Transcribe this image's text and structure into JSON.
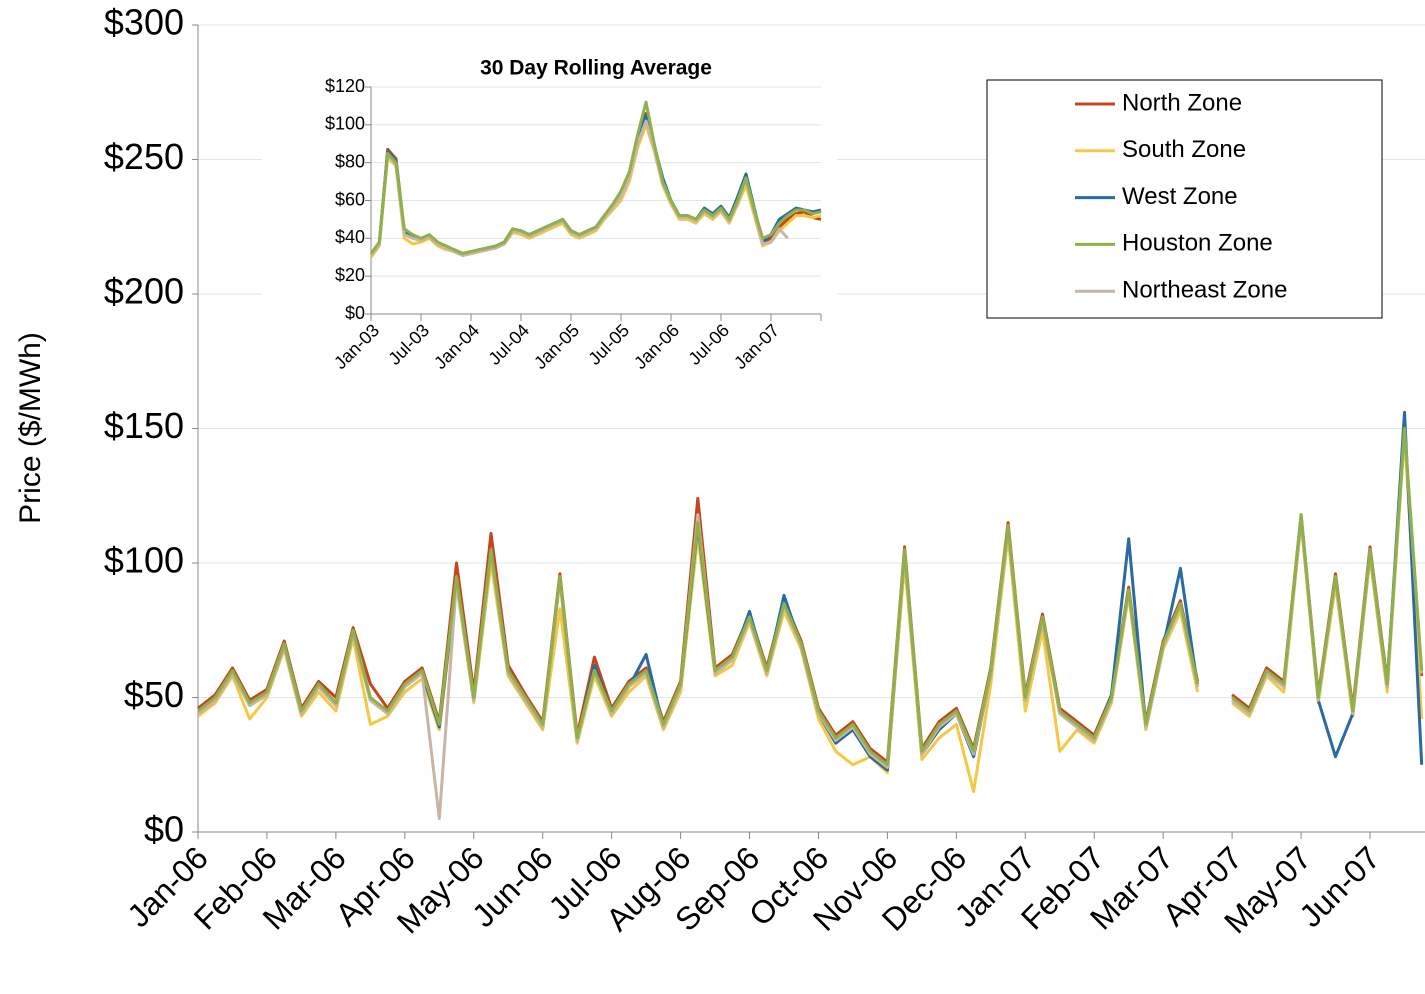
{
  "chart_data": [
    {
      "type": "line",
      "y_label": "Price ($/MWh)",
      "categories": [
        "Jan-06",
        null,
        null,
        null,
        "Feb-06",
        null,
        null,
        null,
        "Mar-06",
        null,
        null,
        null,
        "Apr-06",
        null,
        null,
        null,
        "May-06",
        null,
        null,
        null,
        "Jun-06",
        null,
        null,
        null,
        "Jul-06",
        null,
        null,
        null,
        "Aug-06",
        null,
        null,
        null,
        "Sep-06",
        null,
        null,
        null,
        "Oct-06",
        null,
        null,
        null,
        "Nov-06",
        null,
        null,
        null,
        "Dec-06",
        null,
        null,
        null,
        "Jan-07",
        null,
        null,
        null,
        "Feb-07",
        null,
        null,
        null,
        "Mar-07",
        null,
        null,
        null,
        "Apr-07",
        null,
        null,
        null,
        "May-07",
        null,
        null,
        null,
        "Jun-07",
        null,
        null,
        null
      ],
      "ylim": [
        0,
        300
      ],
      "yticks": [
        {
          "value": 0,
          "label": "$0"
        },
        {
          "value": 50,
          "label": "$50"
        },
        {
          "value": 100,
          "label": "$100"
        },
        {
          "value": 150,
          "label": "$150"
        },
        {
          "value": 200,
          "label": "$200"
        },
        {
          "value": 250,
          "label": "$250"
        },
        {
          "value": 300,
          "label": "$300"
        }
      ],
      "grid": true,
      "legend": "upper right",
      "series": [
        {
          "name": "North Zone",
          "color": "#c4461c",
          "values": [
            46,
            51,
            61,
            49,
            53,
            71,
            46,
            56,
            50,
            76,
            55,
            46,
            56,
            61,
            41,
            100,
            52,
            111,
            62,
            51,
            41,
            96,
            36,
            65,
            46,
            56,
            61,
            41,
            56,
            124,
            61,
            66,
            81,
            61,
            86,
            71,
            46,
            36,
            41,
            31,
            26,
            106,
            31,
            41,
            46,
            31,
            61,
            115,
            51,
            81,
            46,
            41,
            36,
            51,
            91,
            41,
            71,
            86,
            56,
            null,
            51,
            46,
            61,
            56,
            118,
            51,
            96,
            46,
            106,
            56,
            148,
            58
          ]
        },
        {
          "name": "South Zone",
          "color": "#f6c743",
          "values": [
            43,
            48,
            58,
            42,
            50,
            68,
            43,
            52,
            45,
            72,
            40,
            43,
            52,
            57,
            38,
            92,
            48,
            100,
            58,
            48,
            38,
            83,
            33,
            58,
            43,
            52,
            58,
            38,
            52,
            110,
            58,
            62,
            78,
            58,
            82,
            68,
            42,
            30,
            25,
            28,
            22,
            100,
            27,
            35,
            40,
            15,
            55,
            110,
            45,
            75,
            30,
            38,
            33,
            48,
            88,
            38,
            68,
            82,
            52,
            null,
            48,
            43,
            58,
            52,
            115,
            48,
            92,
            43,
            102,
            52,
            148,
            42
          ]
        },
        {
          "name": "West Zone",
          "color": "#2a6aa2",
          "values": [
            44,
            49,
            59,
            47,
            51,
            69,
            44,
            54,
            47,
            74,
            49,
            44,
            54,
            59,
            39,
            94,
            49,
            104,
            59,
            49,
            39,
            94,
            34,
            62,
            44,
            54,
            66,
            39,
            54,
            114,
            59,
            64,
            82,
            59,
            88,
            69,
            44,
            33,
            38,
            28,
            23,
            104,
            29,
            38,
            44,
            28,
            59,
            113,
            49,
            79,
            44,
            39,
            34,
            51,
            109,
            39,
            69,
            98,
            54,
            null,
            49,
            44,
            59,
            54,
            117,
            49,
            28,
            44,
            104,
            54,
            156,
            25
          ]
        },
        {
          "name": "Houston Zone",
          "color": "#8fb14c",
          "values": [
            45,
            50,
            60,
            48,
            52,
            70,
            45,
            55,
            48,
            75,
            50,
            45,
            55,
            60,
            40,
            95,
            50,
            105,
            60,
            50,
            40,
            95,
            35,
            60,
            45,
            55,
            60,
            40,
            55,
            115,
            60,
            65,
            80,
            60,
            85,
            70,
            45,
            35,
            40,
            30,
            25,
            105,
            30,
            40,
            45,
            30,
            60,
            114,
            50,
            80,
            45,
            40,
            35,
            50,
            90,
            40,
            70,
            85,
            55,
            null,
            50,
            45,
            60,
            55,
            118,
            50,
            95,
            45,
            105,
            55,
            150,
            60
          ]
        },
        {
          "name": "Northeast Zone",
          "color": "#c9b5a7",
          "values": [
            44,
            49,
            59,
            47,
            51,
            69,
            44,
            54,
            47,
            74,
            49,
            44,
            54,
            59,
            5,
            93,
            49,
            104,
            59,
            49,
            39,
            94,
            34,
            60,
            44,
            54,
            59,
            39,
            54,
            118,
            59,
            64,
            79,
            59,
            84,
            69,
            44,
            34,
            39,
            29,
            24,
            104,
            29,
            39,
            44,
            29,
            59,
            113,
            49,
            79,
            44,
            39,
            34,
            49,
            89,
            39,
            69,
            84,
            54,
            null,
            49,
            44,
            59,
            54,
            117,
            49,
            94,
            44,
            104,
            54,
            149,
            59
          ]
        }
      ]
    },
    {
      "type": "line",
      "title": "30 Day Rolling Average",
      "categories": [
        "Jan-03",
        null,
        null,
        null,
        null,
        null,
        "Jul-03",
        null,
        null,
        null,
        null,
        null,
        "Jan-04",
        null,
        null,
        null,
        null,
        null,
        "Jul-04",
        null,
        null,
        null,
        null,
        null,
        "Jan-05",
        null,
        null,
        null,
        null,
        null,
        "Jul-05",
        null,
        null,
        null,
        null,
        null,
        "Jan-06",
        null,
        null,
        null,
        null,
        null,
        "Jul-06",
        null,
        null,
        null,
        null,
        null,
        "Jan-07",
        null,
        null,
        null,
        null,
        null,
        null
      ],
      "ylim": [
        0,
        120
      ],
      "yticks": [
        {
          "value": 0,
          "label": "$0"
        },
        {
          "value": 20,
          "label": "$20"
        },
        {
          "value": 40,
          "label": "$40"
        },
        {
          "value": 60,
          "label": "$60"
        },
        {
          "value": 80,
          "label": "$80"
        },
        {
          "value": 100,
          "label": "$100"
        },
        {
          "value": 120,
          "label": "$120"
        }
      ],
      "grid": true,
      "series": [
        {
          "name": "North Zone",
          "color": "#c4461c",
          "values": [
            31,
            37,
            87,
            82,
            44,
            40,
            39,
            41,
            37,
            35,
            33,
            31,
            32,
            33,
            34,
            35,
            37,
            44,
            43,
            41,
            43,
            45,
            47,
            49,
            43,
            41,
            43,
            45,
            51,
            57,
            64,
            74,
            94,
            106,
            88,
            69,
            59,
            51,
            51,
            49,
            54,
            51,
            55,
            49,
            58,
            70,
            53,
            38,
            40,
            46,
            50,
            53,
            54,
            51,
            50
          ]
        },
        {
          "name": "South Zone",
          "color": "#f6c743",
          "values": [
            30,
            36,
            83,
            78,
            40,
            37,
            38,
            40,
            36,
            34,
            33,
            31,
            32,
            33,
            34,
            35,
            37,
            43,
            42,
            40,
            42,
            44,
            46,
            48,
            42,
            40,
            42,
            44,
            50,
            55,
            60,
            70,
            88,
            100,
            86,
            68,
            58,
            50,
            50,
            48,
            53,
            50,
            54,
            48,
            58,
            68,
            52,
            36,
            38,
            44,
            48,
            52,
            52,
            51,
            52
          ]
        },
        {
          "name": "West Zone",
          "color": "#2a6aa2",
          "values": [
            31,
            37,
            86,
            81,
            43,
            41,
            39,
            41,
            37,
            35,
            34,
            32,
            33,
            34,
            35,
            36,
            38,
            45,
            44,
            42,
            44,
            46,
            48,
            50,
            44,
            42,
            44,
            46,
            52,
            57,
            63,
            73,
            92,
            105,
            89,
            72,
            60,
            52,
            52,
            50,
            56,
            53,
            57,
            51,
            62,
            74,
            56,
            38,
            42,
            50,
            53,
            56,
            55,
            54,
            55
          ]
        },
        {
          "name": "Houston Zone",
          "color": "#8fb14c",
          "values": [
            32,
            38,
            85,
            80,
            45,
            42,
            40,
            42,
            38,
            36,
            34,
            32,
            33,
            34,
            35,
            36,
            38,
            45,
            44,
            42,
            44,
            46,
            48,
            50,
            44,
            42,
            44,
            46,
            52,
            58,
            65,
            75,
            95,
            112,
            90,
            70,
            60,
            52,
            52,
            50,
            55,
            52,
            56,
            50,
            60,
            72,
            55,
            40,
            42,
            48,
            52,
            55,
            55,
            53,
            54
          ]
        },
        {
          "name": "Northeast Zone",
          "color": "#c9b5a7",
          "values": [
            31,
            37,
            84,
            79,
            42,
            40,
            39,
            41,
            37,
            35,
            33,
            31,
            32,
            33,
            34,
            35,
            37,
            44,
            43,
            41,
            43,
            45,
            47,
            49,
            43,
            41,
            43,
            45,
            51,
            56,
            62,
            72,
            90,
            102,
            87,
            69,
            59,
            51,
            51,
            49,
            54,
            51,
            55,
            49,
            59,
            71,
            54,
            37,
            38,
            45,
            40,
            null,
            null,
            null,
            null
          ]
        }
      ]
    }
  ]
}
